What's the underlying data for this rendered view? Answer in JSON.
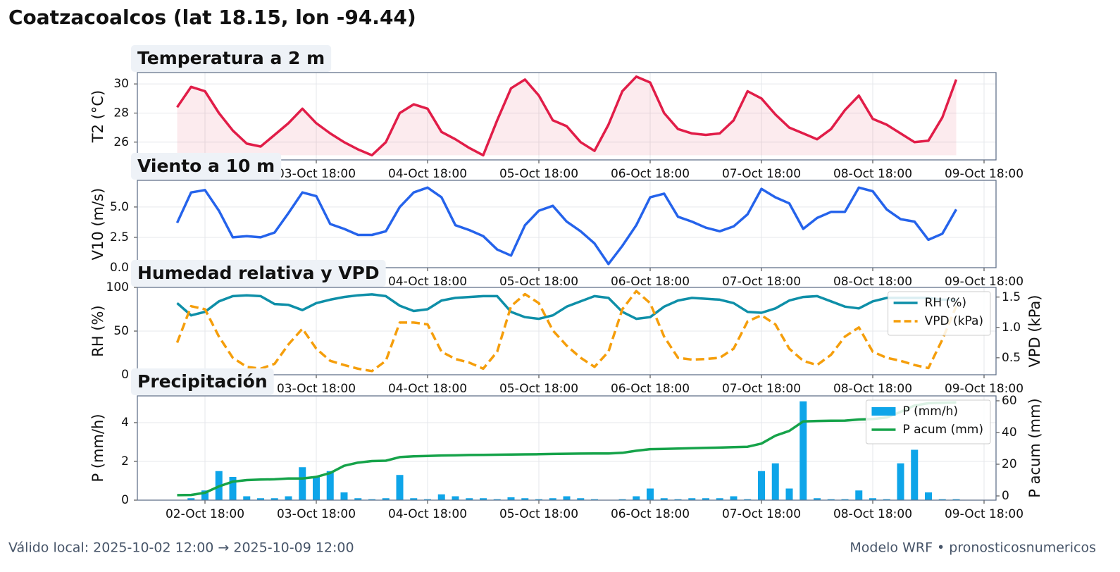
{
  "title": "Coatzacoalcos (lat 18.15, lon -94.44)",
  "footer_left": "Válido local: 2025-10-02 12:00 → 2025-10-09 12:00",
  "footer_right": "Modelo WRF • pronosticosnumericos",
  "chart_data": [
    {
      "type": "line",
      "title": "Temperatura a 2 m",
      "ylabel": "T2 (°C)",
      "grid": true,
      "x": [
        "02-Oct 12:00",
        "02-Oct 15:00",
        "02-Oct 18:00",
        "02-Oct 21:00",
        "03-Oct 00:00",
        "03-Oct 03:00",
        "03-Oct 06:00",
        "03-Oct 09:00",
        "03-Oct 12:00",
        "03-Oct 15:00",
        "03-Oct 18:00",
        "03-Oct 21:00",
        "04-Oct 00:00",
        "04-Oct 03:00",
        "04-Oct 06:00",
        "04-Oct 09:00",
        "04-Oct 12:00",
        "04-Oct 15:00",
        "04-Oct 18:00",
        "04-Oct 21:00",
        "05-Oct 00:00",
        "05-Oct 03:00",
        "05-Oct 06:00",
        "05-Oct 09:00",
        "05-Oct 12:00",
        "05-Oct 15:00",
        "05-Oct 18:00",
        "05-Oct 21:00",
        "06-Oct 00:00",
        "06-Oct 03:00",
        "06-Oct 06:00",
        "06-Oct 09:00",
        "06-Oct 12:00",
        "06-Oct 15:00",
        "06-Oct 18:00",
        "06-Oct 21:00",
        "07-Oct 00:00",
        "07-Oct 03:00",
        "07-Oct 06:00",
        "07-Oct 09:00",
        "07-Oct 12:00",
        "07-Oct 15:00",
        "07-Oct 18:00",
        "07-Oct 21:00",
        "08-Oct 00:00",
        "08-Oct 03:00",
        "08-Oct 06:00",
        "08-Oct 09:00",
        "08-Oct 12:00",
        "08-Oct 15:00",
        "08-Oct 18:00",
        "08-Oct 21:00",
        "09-Oct 00:00",
        "09-Oct 03:00",
        "09-Oct 06:00",
        "09-Oct 09:00",
        "09-Oct 12:00"
      ],
      "xticks": [
        "02-Oct 18:00",
        "03-Oct 18:00",
        "04-Oct 18:00",
        "05-Oct 18:00",
        "06-Oct 18:00",
        "07-Oct 18:00",
        "08-Oct 18:00",
        "09-Oct 18:00"
      ],
      "ylim": [
        24.78,
        30.78
      ],
      "yticks": [
        26,
        28,
        30
      ],
      "series": [
        {
          "name": "T2",
          "color": "#e11d48",
          "fill": true,
          "values": [
            28.4,
            29.8,
            29.5,
            28.0,
            26.8,
            25.9,
            25.7,
            26.5,
            27.3,
            28.3,
            27.3,
            26.6,
            26.0,
            25.5,
            25.1,
            26.0,
            28.0,
            28.6,
            28.3,
            26.7,
            26.2,
            25.6,
            25.1,
            27.5,
            29.7,
            30.3,
            29.2,
            27.5,
            27.1,
            26.0,
            25.4,
            27.2,
            29.5,
            30.5,
            30.1,
            28.0,
            26.9,
            26.6,
            26.5,
            26.6,
            27.5,
            29.5,
            29.0,
            27.9,
            27.0,
            26.6,
            26.2,
            26.9,
            28.2,
            29.2,
            27.6,
            27.2,
            26.6,
            26.0,
            26.1,
            27.7,
            30.3
          ]
        }
      ]
    },
    {
      "type": "line",
      "title": "Viento a 10 m",
      "ylabel": "V10 (m/s)",
      "grid": true,
      "x": [
        "02-Oct 12:00",
        "02-Oct 15:00",
        "02-Oct 18:00",
        "02-Oct 21:00",
        "03-Oct 00:00",
        "03-Oct 03:00",
        "03-Oct 06:00",
        "03-Oct 09:00",
        "03-Oct 12:00",
        "03-Oct 15:00",
        "03-Oct 18:00",
        "03-Oct 21:00",
        "04-Oct 00:00",
        "04-Oct 03:00",
        "04-Oct 06:00",
        "04-Oct 09:00",
        "04-Oct 12:00",
        "04-Oct 15:00",
        "04-Oct 18:00",
        "04-Oct 21:00",
        "05-Oct 00:00",
        "05-Oct 03:00",
        "05-Oct 06:00",
        "05-Oct 09:00",
        "05-Oct 12:00",
        "05-Oct 15:00",
        "05-Oct 18:00",
        "05-Oct 21:00",
        "06-Oct 00:00",
        "06-Oct 03:00",
        "06-Oct 06:00",
        "06-Oct 09:00",
        "06-Oct 12:00",
        "06-Oct 15:00",
        "06-Oct 18:00",
        "06-Oct 21:00",
        "07-Oct 00:00",
        "07-Oct 03:00",
        "07-Oct 06:00",
        "07-Oct 09:00",
        "07-Oct 12:00",
        "07-Oct 15:00",
        "07-Oct 18:00",
        "07-Oct 21:00",
        "08-Oct 00:00",
        "08-Oct 03:00",
        "08-Oct 06:00",
        "08-Oct 09:00",
        "08-Oct 12:00",
        "08-Oct 15:00",
        "08-Oct 18:00",
        "08-Oct 21:00",
        "09-Oct 00:00",
        "09-Oct 03:00",
        "09-Oct 06:00",
        "09-Oct 09:00",
        "09-Oct 12:00"
      ],
      "xticks": [
        "02-Oct 18:00",
        "03-Oct 18:00",
        "04-Oct 18:00",
        "05-Oct 18:00",
        "06-Oct 18:00",
        "07-Oct 18:00",
        "08-Oct 18:00",
        "09-Oct 18:00"
      ],
      "ylim": [
        0,
        7.2
      ],
      "yticks": [
        {
          "value": 0,
          "label": "0.0"
        },
        2.5,
        {
          "value": 5,
          "label": "5.0"
        }
      ],
      "series": [
        {
          "name": "V10",
          "color": "#2563eb",
          "values": [
            3.7,
            6.2,
            6.4,
            4.7,
            2.5,
            2.6,
            2.5,
            2.9,
            4.5,
            6.2,
            5.9,
            3.6,
            3.2,
            2.7,
            2.7,
            3.0,
            5.0,
            6.2,
            6.6,
            5.8,
            3.5,
            3.1,
            2.6,
            1.5,
            1.0,
            3.5,
            4.7,
            5.1,
            3.8,
            3.0,
            2.0,
            0.3,
            1.8,
            3.5,
            5.8,
            6.1,
            4.2,
            3.8,
            3.3,
            3.0,
            3.4,
            4.4,
            6.5,
            5.8,
            5.3,
            3.2,
            4.1,
            4.6,
            4.6,
            6.6,
            6.3,
            4.8,
            4.0,
            3.8,
            2.3,
            2.8,
            4.8
          ]
        }
      ]
    },
    {
      "type": "line",
      "title": "Humedad relativa y VPD",
      "ylabel": "RH (%)",
      "y2label": "VPD (kPa)",
      "grid": true,
      "legend": "upper right",
      "x": [
        "02-Oct 12:00",
        "02-Oct 15:00",
        "02-Oct 18:00",
        "02-Oct 21:00",
        "03-Oct 00:00",
        "03-Oct 03:00",
        "03-Oct 06:00",
        "03-Oct 09:00",
        "03-Oct 12:00",
        "03-Oct 15:00",
        "03-Oct 18:00",
        "03-Oct 21:00",
        "04-Oct 00:00",
        "04-Oct 03:00",
        "04-Oct 06:00",
        "04-Oct 09:00",
        "04-Oct 12:00",
        "04-Oct 15:00",
        "04-Oct 18:00",
        "04-Oct 21:00",
        "05-Oct 00:00",
        "05-Oct 03:00",
        "05-Oct 06:00",
        "05-Oct 09:00",
        "05-Oct 12:00",
        "05-Oct 15:00",
        "05-Oct 18:00",
        "05-Oct 21:00",
        "06-Oct 00:00",
        "06-Oct 03:00",
        "06-Oct 06:00",
        "06-Oct 09:00",
        "06-Oct 12:00",
        "06-Oct 15:00",
        "06-Oct 18:00",
        "06-Oct 21:00",
        "07-Oct 00:00",
        "07-Oct 03:00",
        "07-Oct 06:00",
        "07-Oct 09:00",
        "07-Oct 12:00",
        "07-Oct 15:00",
        "07-Oct 18:00",
        "07-Oct 21:00",
        "08-Oct 00:00",
        "08-Oct 03:00",
        "08-Oct 06:00",
        "08-Oct 09:00",
        "08-Oct 12:00",
        "08-Oct 15:00",
        "08-Oct 18:00",
        "08-Oct 21:00",
        "09-Oct 00:00",
        "09-Oct 03:00",
        "09-Oct 06:00",
        "09-Oct 09:00",
        "09-Oct 12:00"
      ],
      "xticks": [
        "02-Oct 18:00",
        "03-Oct 18:00",
        "04-Oct 18:00",
        "05-Oct 18:00",
        "06-Oct 18:00",
        "07-Oct 18:00",
        "08-Oct 18:00",
        "09-Oct 18:00"
      ],
      "ylim": [
        0,
        100
      ],
      "yticks": [
        0,
        50,
        100
      ],
      "y2lim": [
        0.22,
        1.66
      ],
      "y2ticks": [
        0.5,
        {
          "value": 1,
          "label": "1.0"
        },
        1.5
      ],
      "series": [
        {
          "name": "RH (%)",
          "color": "#0e8fa8",
          "values": [
            82,
            68,
            72,
            84,
            90,
            91,
            90,
            81,
            80,
            74,
            82,
            86,
            89,
            91,
            92,
            90,
            79,
            73,
            75,
            85,
            88,
            89,
            90,
            90,
            72,
            66,
            64,
            68,
            78,
            84,
            90,
            88,
            72,
            64,
            66,
            78,
            85,
            88,
            87,
            86,
            82,
            72,
            71,
            76,
            85,
            89,
            90,
            84,
            78,
            76,
            84,
            88,
            88,
            88,
            88,
            86,
            86
          ]
        },
        {
          "name": "VPD (kPa)",
          "color": "#f59e0b",
          "axis": "y2",
          "dashed": true,
          "values": [
            0.75,
            1.35,
            1.3,
            0.85,
            0.5,
            0.35,
            0.32,
            0.4,
            0.72,
            0.98,
            0.65,
            0.45,
            0.38,
            0.32,
            0.28,
            0.45,
            1.08,
            1.08,
            1.05,
            0.6,
            0.48,
            0.42,
            0.32,
            0.6,
            1.35,
            1.55,
            1.4,
            0.95,
            0.7,
            0.5,
            0.35,
            0.6,
            1.3,
            1.6,
            1.4,
            0.85,
            0.5,
            0.47,
            0.48,
            0.5,
            0.65,
            1.1,
            1.2,
            1.05,
            0.65,
            0.45,
            0.38,
            0.55,
            0.85,
            1.0,
            0.6,
            0.5,
            0.45,
            0.38,
            0.33,
            0.8,
            1.35
          ]
        }
      ]
    },
    {
      "type": "bar",
      "title": "Precipitación",
      "ylabel": "P (mm/h)",
      "y2label": "P acum (mm)",
      "grid": true,
      "legend": "upper right",
      "x": [
        "02-Oct 12:00",
        "02-Oct 15:00",
        "02-Oct 18:00",
        "02-Oct 21:00",
        "03-Oct 00:00",
        "03-Oct 03:00",
        "03-Oct 06:00",
        "03-Oct 09:00",
        "03-Oct 12:00",
        "03-Oct 15:00",
        "03-Oct 18:00",
        "03-Oct 21:00",
        "04-Oct 00:00",
        "04-Oct 03:00",
        "04-Oct 06:00",
        "04-Oct 09:00",
        "04-Oct 12:00",
        "04-Oct 15:00",
        "04-Oct 18:00",
        "04-Oct 21:00",
        "05-Oct 00:00",
        "05-Oct 03:00",
        "05-Oct 06:00",
        "05-Oct 09:00",
        "05-Oct 12:00",
        "05-Oct 15:00",
        "05-Oct 18:00",
        "05-Oct 21:00",
        "06-Oct 00:00",
        "06-Oct 03:00",
        "06-Oct 06:00",
        "06-Oct 09:00",
        "06-Oct 12:00",
        "06-Oct 15:00",
        "06-Oct 18:00",
        "06-Oct 21:00",
        "07-Oct 00:00",
        "07-Oct 03:00",
        "07-Oct 06:00",
        "07-Oct 09:00",
        "07-Oct 12:00",
        "07-Oct 15:00",
        "07-Oct 18:00",
        "07-Oct 21:00",
        "08-Oct 00:00",
        "08-Oct 03:00",
        "08-Oct 06:00",
        "08-Oct 09:00",
        "08-Oct 12:00",
        "08-Oct 15:00",
        "08-Oct 18:00",
        "08-Oct 21:00",
        "09-Oct 00:00",
        "09-Oct 03:00",
        "09-Oct 06:00",
        "09-Oct 09:00",
        "09-Oct 12:00"
      ],
      "xticks": [
        "02-Oct 18:00",
        "03-Oct 18:00",
        "04-Oct 18:00",
        "05-Oct 18:00",
        "06-Oct 18:00",
        "07-Oct 18:00",
        "08-Oct 18:00",
        "09-Oct 18:00"
      ],
      "ylim": [
        0,
        5.38
      ],
      "yticks": [
        0,
        2,
        4
      ],
      "y2lim": [
        -2.67,
        63.1
      ],
      "y2ticks": [
        0,
        20,
        40,
        60
      ],
      "series": [
        {
          "name": "P (mm/h)",
          "color": "#0ea5e9",
          "type": "bar",
          "values": [
            0,
            0.1,
            0.5,
            1.5,
            1.2,
            0.2,
            0.1,
            0.1,
            0.2,
            1.7,
            1.2,
            1.5,
            0.4,
            0.1,
            0.05,
            0.1,
            1.3,
            0.1,
            0.05,
            0.3,
            0.2,
            0.1,
            0.1,
            0.05,
            0.15,
            0.1,
            0.05,
            0.1,
            0.2,
            0.1,
            0.05,
            0,
            0.05,
            0.2,
            0.6,
            0.1,
            0.05,
            0.1,
            0.1,
            0.1,
            0.2,
            0.05,
            1.5,
            1.9,
            0.6,
            5.1,
            0.1,
            0.05,
            0.05,
            0.5,
            0.1,
            0.05,
            1.9,
            2.6,
            0.4,
            0.05,
            0.05
          ]
        },
        {
          "name": "P acum (mm)",
          "color": "#16a34a",
          "type": "line",
          "axis": "y2",
          "values": [
            0.5,
            0.6,
            2,
            6,
            9,
            10,
            10.3,
            10.5,
            11,
            11,
            12,
            14.5,
            19,
            21,
            22,
            22.2,
            24.5,
            25,
            25.2,
            25.5,
            25.6,
            25.8,
            25.9,
            26,
            26.1,
            26.2,
            26.3,
            26.5,
            26.6,
            26.7,
            26.8,
            26.8,
            27.2,
            28.5,
            29.5,
            29.7,
            29.9,
            30.1,
            30.3,
            30.5,
            30.8,
            31,
            33,
            38,
            41,
            47,
            47.3,
            47.4,
            47.5,
            48.2,
            48.5,
            49.5,
            53,
            57,
            58.5,
            58.8,
            59
          ]
        }
      ]
    }
  ]
}
